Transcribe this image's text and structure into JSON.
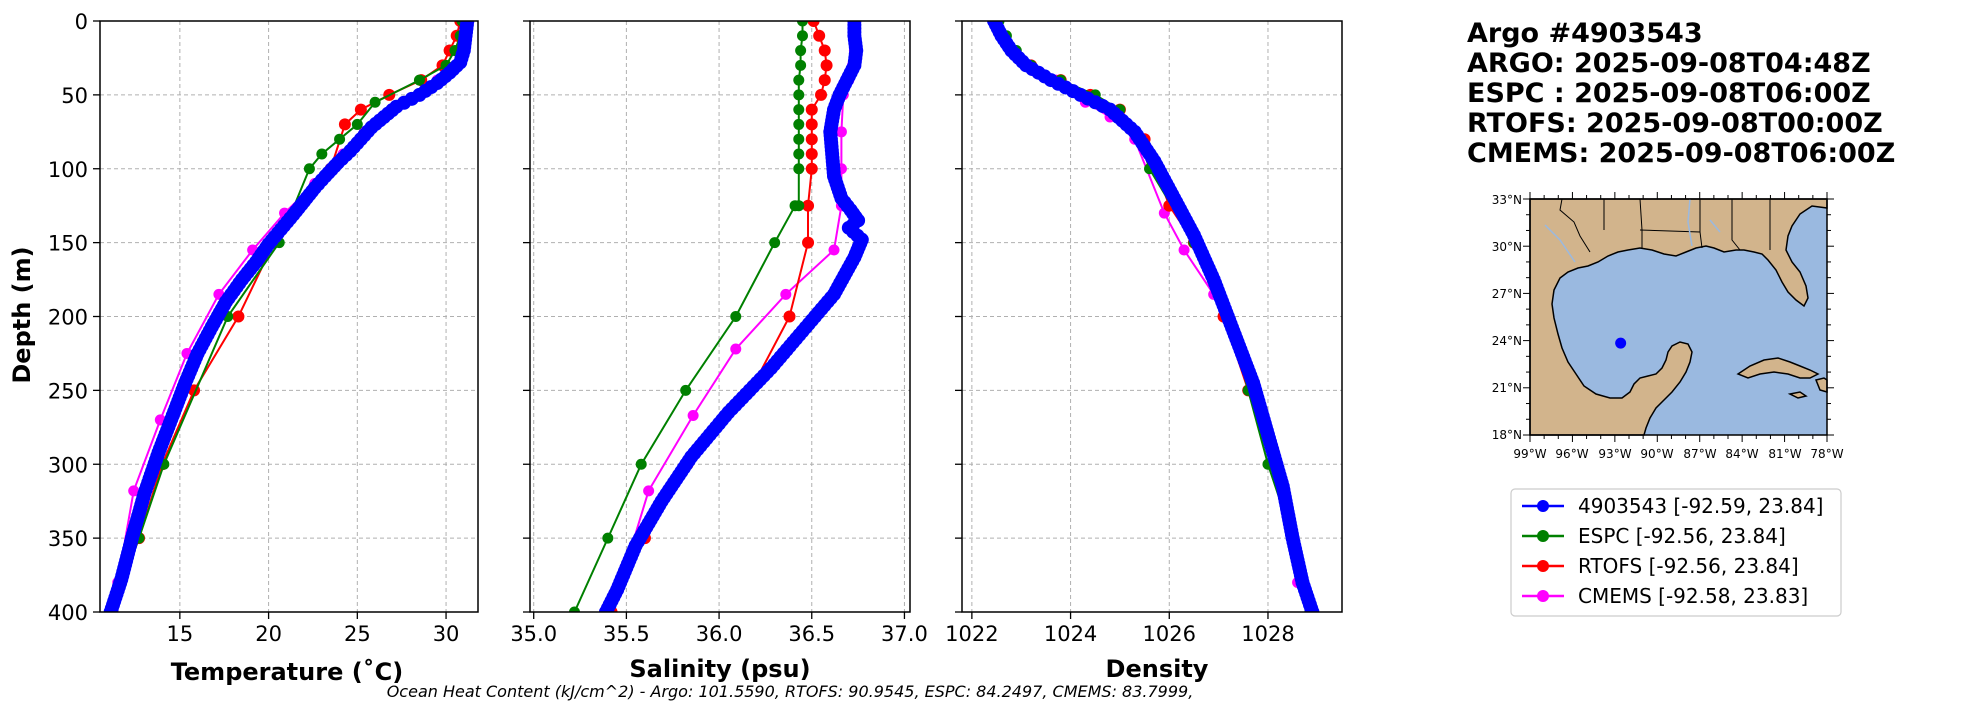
{
  "header": {
    "lines": [
      "Argo #4903543",
      "ARGO: 2025-09-08T04:48Z",
      "ESPC : 2025-09-08T06:00Z",
      "RTOFS: 2025-09-08T00:00Z",
      "CMEMS: 2025-09-08T06:00Z"
    ]
  },
  "footer": {
    "text": "Ocean Heat Content (kJ/cm^2) - Argo: 101.5590,  RTOFS: 90.9545,  ESPC: 84.2497,  CMEMS: 83.7999,"
  },
  "colors": {
    "argo": "#0000ff",
    "espc": "#008000",
    "rtofs": "#ff0000",
    "cmems": "#ff00ff",
    "ocean": "#9ab9e0",
    "land": "#d2b48c"
  },
  "legend": {
    "entries": [
      {
        "label": "4903543 [-92.59, 23.84]",
        "color": "#0000ff"
      },
      {
        "label": "ESPC [-92.56, 23.84]",
        "color": "#008000"
      },
      {
        "label": "RTOFS [-92.56, 23.84]",
        "color": "#ff0000"
      },
      {
        "label": "CMEMS [-92.58, 23.83]",
        "color": "#ff00ff"
      }
    ]
  },
  "map": {
    "lat_labels": [
      "33°N",
      "30°N",
      "27°N",
      "24°N",
      "21°N",
      "18°N"
    ],
    "lon_labels": [
      "99°W",
      "96°W",
      "93°W",
      "90°W",
      "87°W",
      "84°W",
      "81°W",
      "78°W"
    ],
    "lon_range": [
      -99,
      -78
    ],
    "lat_range": [
      18,
      33
    ],
    "float_position": {
      "lon": -92.59,
      "lat": 23.84
    }
  },
  "chart_data": [
    {
      "type": "line",
      "title": "",
      "xlabel": "Temperature (˚C)",
      "ylabel": "Depth (m)",
      "xlim": [
        10.5,
        31.8
      ],
      "ylim": [
        400,
        0
      ],
      "xticks": [
        15,
        20,
        25,
        30
      ],
      "yticks": [
        0,
        50,
        100,
        150,
        200,
        250,
        300,
        350,
        400
      ],
      "grid": true,
      "series": [
        {
          "name": "4903543",
          "key": "argo",
          "x": [
            31.2,
            31.1,
            31.0,
            30.8,
            30.2,
            29.5,
            28.5,
            27.2,
            26.5,
            25.8,
            25.2,
            24.6,
            23.9,
            23.2,
            22.6,
            22.0,
            21.4,
            20.7,
            20.0,
            19.3,
            18.5,
            17.6,
            16.8,
            16.0,
            15.3,
            14.6,
            13.8,
            13.0,
            12.3,
            11.7,
            11.1
          ],
          "y": [
            0,
            10,
            20,
            28,
            35,
            42,
            50,
            58,
            65,
            72,
            80,
            88,
            96,
            105,
            113,
            122,
            131,
            141,
            151,
            163,
            175,
            190,
            207,
            225,
            245,
            267,
            292,
            320,
            350,
            378,
            400
          ]
        },
        {
          "name": "ESPC",
          "key": "espc",
          "x": [
            30.9,
            30.8,
            30.5,
            30.0,
            28.5,
            26.0,
            25.0,
            24.0,
            23.0,
            22.3,
            20.6,
            17.7,
            14.1,
            12.7,
            11.2
          ],
          "y": [
            0,
            10,
            20,
            30,
            40,
            55,
            70,
            80,
            90,
            100,
            150,
            200,
            300,
            350,
            400
          ]
        },
        {
          "name": "RTOFS",
          "key": "rtofs",
          "x": [
            30.8,
            30.6,
            30.2,
            29.8,
            28.6,
            26.8,
            25.2,
            24.3,
            23.5,
            21.8,
            20.3,
            18.3,
            15.8,
            14.0,
            12.7,
            11.2
          ],
          "y": [
            0,
            10,
            20,
            30,
            40,
            50,
            60,
            70,
            100,
            125,
            150,
            200,
            250,
            300,
            350,
            400
          ]
        },
        {
          "name": "CMEMS",
          "key": "cmems",
          "x": [
            31.2,
            31.1,
            30.9,
            30.6,
            29.5,
            27.7,
            26.4,
            25.4,
            24.2,
            22.6,
            20.9,
            19.1,
            17.2,
            15.4,
            13.9,
            12.4,
            11.5
          ],
          "y": [
            0,
            10,
            20,
            30,
            40,
            55,
            65,
            75,
            90,
            110,
            130,
            155,
            185,
            225,
            270,
            318,
            380
          ]
        }
      ]
    },
    {
      "type": "line",
      "title": "",
      "xlabel": "Salinity (psu)",
      "ylabel": "",
      "xlim": [
        34.98,
        37.03
      ],
      "ylim": [
        400,
        0
      ],
      "xticks": [
        35.0,
        35.5,
        36.0,
        36.5,
        37.0
      ],
      "yticks": [
        0,
        50,
        100,
        150,
        200,
        250,
        300,
        350,
        400
      ],
      "grid": true,
      "series": [
        {
          "name": "4903543",
          "key": "argo",
          "x": [
            36.73,
            36.73,
            36.74,
            36.73,
            36.69,
            36.65,
            36.62,
            36.6,
            36.61,
            36.62,
            36.66,
            36.71,
            36.75,
            36.7,
            36.77,
            36.73,
            36.62,
            36.45,
            36.28,
            36.05,
            35.85,
            35.69,
            35.55,
            35.45,
            35.39
          ],
          "y": [
            0,
            10,
            20,
            30,
            40,
            50,
            60,
            75,
            90,
            105,
            120,
            128,
            135,
            140,
            148,
            160,
            185,
            210,
            235,
            265,
            295,
            325,
            355,
            385,
            400
          ]
        },
        {
          "name": "ESPC",
          "key": "espc",
          "x": [
            36.45,
            36.45,
            36.44,
            36.44,
            36.43,
            36.43,
            36.43,
            36.43,
            36.43,
            36.43,
            36.43,
            36.43,
            36.41,
            36.3,
            36.09,
            35.82,
            35.58,
            35.4,
            35.22
          ],
          "y": [
            0,
            10,
            20,
            30,
            40,
            50,
            60,
            70,
            80,
            90,
            100,
            125,
            125,
            150,
            200,
            250,
            300,
            350,
            400
          ]
        },
        {
          "name": "RTOFS",
          "key": "rtofs",
          "x": [
            36.51,
            36.54,
            36.57,
            36.58,
            36.57,
            36.55,
            36.5,
            36.5,
            36.5,
            36.5,
            36.5,
            36.48,
            36.48,
            36.38,
            36.17,
            35.83,
            35.6,
            35.42
          ],
          "y": [
            0,
            10,
            20,
            30,
            40,
            50,
            60,
            70,
            80,
            90,
            100,
            125,
            150,
            200,
            250,
            300,
            350,
            400
          ]
        },
        {
          "name": "CMEMS",
          "key": "cmems",
          "x": [
            36.73,
            36.73,
            36.73,
            36.72,
            36.7,
            36.67,
            36.66,
            36.66,
            36.66,
            36.62,
            36.36,
            36.09,
            35.86,
            35.62,
            35.47
          ],
          "y": [
            0,
            10,
            20,
            30,
            40,
            50,
            75,
            100,
            125,
            155,
            185,
            222,
            267,
            318,
            380
          ]
        }
      ]
    },
    {
      "type": "line",
      "title": "",
      "xlabel": "Density",
      "ylabel": "",
      "xlim": [
        1021.8,
        1029.5
      ],
      "ylim": [
        400,
        0
      ],
      "xticks": [
        1022,
        1024,
        1026,
        1028
      ],
      "yticks": [
        0,
        50,
        100,
        150,
        200,
        250,
        300,
        350,
        400
      ],
      "grid": true,
      "series": [
        {
          "name": "4903543",
          "key": "argo",
          "x": [
            1022.45,
            1022.6,
            1022.8,
            1023.1,
            1023.6,
            1024.2,
            1024.8,
            1025.3,
            1025.7,
            1026.1,
            1026.5,
            1026.9,
            1027.3,
            1027.7,
            1028.0,
            1028.3,
            1028.5,
            1028.7,
            1028.9
          ],
          "y": [
            0,
            10,
            20,
            30,
            40,
            50,
            60,
            75,
            95,
            120,
            145,
            175,
            210,
            245,
            280,
            315,
            350,
            380,
            400
          ]
        },
        {
          "name": "ESPC",
          "key": "espc",
          "x": [
            1022.55,
            1022.7,
            1022.9,
            1023.2,
            1023.8,
            1024.5,
            1025.0,
            1025.4,
            1025.6,
            1026.5,
            1027.2,
            1027.6,
            1028.0,
            1028.5,
            1028.85
          ],
          "y": [
            0,
            10,
            20,
            30,
            40,
            50,
            60,
            80,
            100,
            150,
            200,
            250,
            300,
            350,
            400
          ]
        },
        {
          "name": "RTOFS",
          "key": "rtofs",
          "x": [
            1022.45,
            1022.6,
            1022.8,
            1023.2,
            1023.8,
            1024.4,
            1025.0,
            1025.5,
            1026.0,
            1026.5,
            1027.1,
            1027.6,
            1028.1,
            1028.5,
            1028.9
          ],
          "y": [
            0,
            10,
            20,
            30,
            40,
            50,
            60,
            80,
            125,
            150,
            200,
            250,
            300,
            350,
            400
          ]
        },
        {
          "name": "CMEMS",
          "key": "cmems",
          "x": [
            1022.45,
            1022.6,
            1022.8,
            1023.1,
            1023.7,
            1024.3,
            1024.8,
            1025.3,
            1025.9,
            1026.3,
            1026.9,
            1027.5,
            1028.1,
            1028.6
          ],
          "y": [
            0,
            10,
            20,
            30,
            40,
            55,
            65,
            80,
            130,
            155,
            185,
            225,
            300,
            380
          ]
        }
      ]
    }
  ]
}
